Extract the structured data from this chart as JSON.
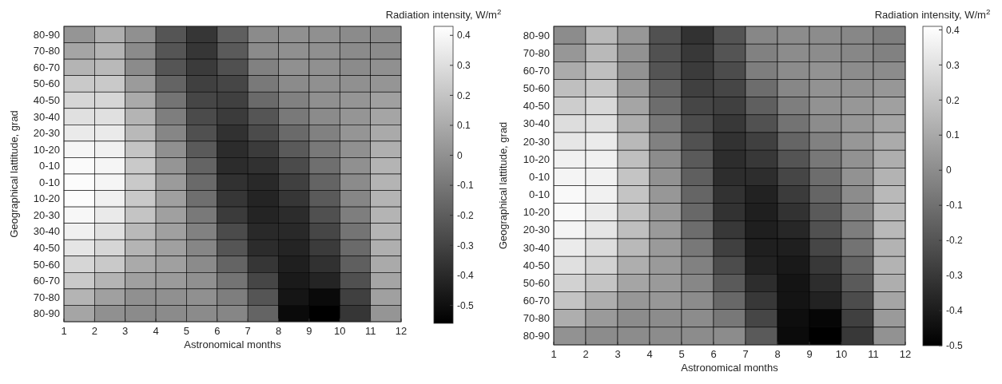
{
  "chart_data": [
    {
      "type": "heatmap",
      "xlabel": "Astronomical months",
      "ylabel": "Geographical lattitude, grad",
      "clabel": "Radiation intensity, W/m$^{2}$",
      "x": [
        1.5,
        2.5,
        3.5,
        4.5,
        5.5,
        6.5,
        7.5,
        8.5,
        9.5,
        10.5,
        11.5
      ],
      "xlim": [
        1,
        12
      ],
      "xticks": [
        1,
        2,
        3,
        4,
        5,
        6,
        7,
        8,
        9,
        10,
        11,
        12
      ],
      "y_categories": [
        "80-90",
        "70-80",
        "60-70",
        "50-60",
        "40-50",
        "30-40",
        "20-30",
        "10-20",
        "0-10",
        "0-10",
        "10-20",
        "20-30",
        "30-40",
        "40-50",
        "50-60",
        "60-70",
        "70-80",
        "80-90"
      ],
      "clim": [
        -0.56,
        0.43
      ],
      "cticks": [
        -0.5,
        -0.4,
        -0.3,
        -0.2,
        -0.1,
        0,
        0.1,
        0.2,
        0.3,
        0.4
      ],
      "cells": [
        [
          0.02,
          0.12,
          0.0,
          -0.23,
          -0.35,
          -0.19,
          -0.02,
          0.0,
          0.0,
          -0.02,
          -0.02
        ],
        [
          0.08,
          0.14,
          -0.02,
          -0.23,
          -0.35,
          -0.21,
          -0.02,
          0.0,
          0.0,
          -0.02,
          -0.02
        ],
        [
          0.14,
          0.16,
          -0.02,
          -0.23,
          -0.33,
          -0.25,
          -0.06,
          0.0,
          0.0,
          -0.02,
          0.0
        ],
        [
          0.22,
          0.22,
          0.04,
          -0.17,
          -0.31,
          -0.29,
          -0.09,
          -0.02,
          0.0,
          0.0,
          0.02
        ],
        [
          0.27,
          0.27,
          0.1,
          -0.11,
          -0.29,
          -0.31,
          -0.15,
          -0.06,
          0.0,
          0.02,
          0.06
        ],
        [
          0.31,
          0.31,
          0.14,
          -0.07,
          -0.27,
          -0.33,
          -0.23,
          -0.09,
          -0.02,
          0.02,
          0.08
        ],
        [
          0.35,
          0.35,
          0.16,
          -0.04,
          -0.25,
          -0.37,
          -0.27,
          -0.15,
          -0.06,
          0.02,
          0.1
        ],
        [
          0.39,
          0.37,
          0.2,
          0.0,
          -0.21,
          -0.39,
          -0.33,
          -0.21,
          -0.09,
          0.0,
          0.12
        ],
        [
          0.41,
          0.39,
          0.22,
          0.02,
          -0.17,
          -0.39,
          -0.37,
          -0.27,
          -0.13,
          0.0,
          0.14
        ],
        [
          0.42,
          0.39,
          0.22,
          0.04,
          -0.15,
          -0.37,
          -0.4,
          -0.31,
          -0.17,
          -0.02,
          0.14
        ],
        [
          0.42,
          0.37,
          0.22,
          0.06,
          -0.13,
          -0.35,
          -0.42,
          -0.35,
          -0.21,
          -0.04,
          0.14
        ],
        [
          0.4,
          0.35,
          0.2,
          0.06,
          -0.09,
          -0.33,
          -0.42,
          -0.39,
          -0.25,
          -0.07,
          0.14
        ],
        [
          0.37,
          0.31,
          0.16,
          0.06,
          -0.06,
          -0.27,
          -0.4,
          -0.4,
          -0.29,
          -0.11,
          0.14
        ],
        [
          0.33,
          0.27,
          0.14,
          0.06,
          -0.04,
          -0.23,
          -0.39,
          -0.42,
          -0.33,
          -0.15,
          0.12
        ],
        [
          0.27,
          0.22,
          0.1,
          0.06,
          -0.02,
          -0.17,
          -0.35,
          -0.44,
          -0.37,
          -0.19,
          0.1
        ],
        [
          0.22,
          0.14,
          0.06,
          0.04,
          0.0,
          -0.11,
          -0.29,
          -0.46,
          -0.42,
          -0.25,
          0.08
        ],
        [
          0.14,
          0.06,
          0.0,
          0.0,
          0.0,
          -0.07,
          -0.23,
          -0.48,
          -0.52,
          -0.31,
          0.06
        ],
        [
          0.08,
          0.0,
          -0.02,
          -0.02,
          -0.02,
          -0.04,
          -0.17,
          -0.52,
          -0.56,
          -0.35,
          0.02
        ]
      ]
    },
    {
      "type": "heatmap",
      "xlabel": "Astronomical months",
      "ylabel": "Geographical lattitude, grad",
      "clabel": "Radiation intensity, W/m$^{2}$",
      "x": [
        1.5,
        2.5,
        3.5,
        4.5,
        5.5,
        6.5,
        7.5,
        8.5,
        9.5,
        10.5,
        11.5
      ],
      "xlim": [
        1,
        12
      ],
      "xticks": [
        1,
        2,
        3,
        4,
        5,
        6,
        7,
        8,
        9,
        10,
        11,
        12
      ],
      "y_categories": [
        "80-90",
        "70-80",
        "60-70",
        "50-60",
        "40-50",
        "30-40",
        "20-30",
        "10-20",
        "0-10",
        "0-10",
        "10-20",
        "20-30",
        "30-40",
        "40-50",
        "50-60",
        "60-70",
        "70-80",
        "80-90"
      ],
      "clim": [
        -0.5,
        0.41
      ],
      "cticks": [
        -0.5,
        -0.4,
        -0.3,
        -0.2,
        -0.1,
        0,
        0.1,
        0.2,
        0.3,
        0.4
      ],
      "cells": [
        [
          0.0,
          0.16,
          0.04,
          -0.21,
          -0.32,
          -0.2,
          -0.02,
          0.0,
          0.0,
          -0.02,
          -0.05
        ],
        [
          0.04,
          0.16,
          0.02,
          -0.21,
          -0.3,
          -0.2,
          -0.04,
          0.0,
          0.0,
          -0.02,
          -0.04
        ],
        [
          0.11,
          0.18,
          0.02,
          -0.2,
          -0.29,
          -0.23,
          -0.05,
          0.0,
          0.02,
          0.0,
          0.0
        ],
        [
          0.18,
          0.21,
          0.05,
          -0.14,
          -0.27,
          -0.25,
          -0.11,
          -0.02,
          0.02,
          0.02,
          0.04
        ],
        [
          0.23,
          0.27,
          0.09,
          -0.11,
          -0.25,
          -0.27,
          -0.16,
          -0.05,
          0.02,
          0.04,
          0.07
        ],
        [
          0.29,
          0.3,
          0.12,
          -0.07,
          -0.23,
          -0.3,
          -0.21,
          -0.09,
          0.0,
          0.04,
          0.09
        ],
        [
          0.32,
          0.34,
          0.16,
          -0.04,
          -0.21,
          -0.32,
          -0.27,
          -0.14,
          -0.04,
          0.04,
          0.11
        ],
        [
          0.36,
          0.36,
          0.18,
          0.0,
          -0.18,
          -0.34,
          -0.3,
          -0.2,
          -0.07,
          0.02,
          0.12
        ],
        [
          0.37,
          0.36,
          0.2,
          0.02,
          -0.16,
          -0.34,
          -0.34,
          -0.25,
          -0.11,
          0.02,
          0.14
        ],
        [
          0.39,
          0.36,
          0.2,
          0.04,
          -0.14,
          -0.32,
          -0.38,
          -0.29,
          -0.14,
          0.0,
          0.16
        ],
        [
          0.39,
          0.34,
          0.2,
          0.05,
          -0.13,
          -0.32,
          -0.39,
          -0.32,
          -0.18,
          -0.02,
          0.16
        ],
        [
          0.37,
          0.32,
          0.18,
          0.05,
          -0.11,
          -0.3,
          -0.39,
          -0.36,
          -0.21,
          -0.05,
          0.16
        ],
        [
          0.34,
          0.29,
          0.16,
          0.05,
          -0.07,
          -0.27,
          -0.39,
          -0.39,
          -0.25,
          -0.09,
          0.14
        ],
        [
          0.3,
          0.25,
          0.12,
          0.05,
          -0.04,
          -0.23,
          -0.38,
          -0.41,
          -0.3,
          -0.14,
          0.14
        ],
        [
          0.25,
          0.2,
          0.09,
          0.05,
          -0.02,
          -0.18,
          -0.34,
          -0.43,
          -0.34,
          -0.18,
          0.12
        ],
        [
          0.2,
          0.12,
          0.04,
          0.04,
          0.0,
          -0.13,
          -0.3,
          -0.43,
          -0.38,
          -0.23,
          0.09
        ],
        [
          0.12,
          0.05,
          0.0,
          0.0,
          0.0,
          -0.07,
          -0.25,
          -0.45,
          -0.48,
          -0.27,
          0.05
        ],
        [
          0.02,
          0.0,
          0.0,
          0.0,
          0.0,
          0.0,
          -0.18,
          -0.46,
          -0.5,
          -0.3,
          0.02
        ]
      ]
    }
  ]
}
